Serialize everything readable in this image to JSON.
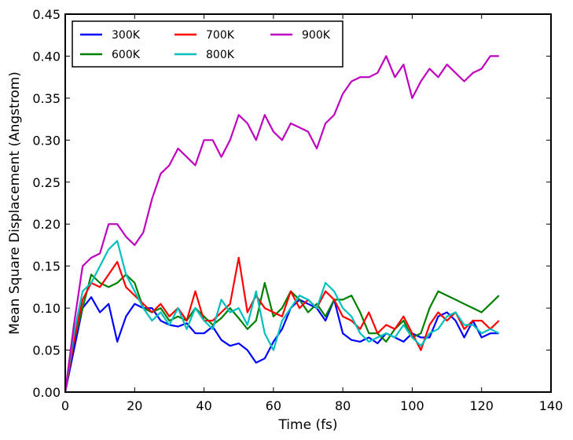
{
  "chart_data": {
    "type": "line",
    "title": "",
    "xlabel": "Time (fs)",
    "ylabel": "Mean Square Displacement (Angstrom)",
    "xlim": [
      0,
      140
    ],
    "ylim": [
      0.0,
      0.45
    ],
    "xticks": [
      "0",
      "20",
      "40",
      "60",
      "80",
      "100",
      "120",
      "140"
    ],
    "yticks": [
      "0.00",
      "0.05",
      "0.10",
      "0.15",
      "0.20",
      "0.25",
      "0.30",
      "0.35",
      "0.40",
      "0.45"
    ],
    "grid": false,
    "legend_position": "top-left",
    "x": [
      0,
      2.5,
      5,
      7.5,
      10,
      12.5,
      15,
      17.5,
      20,
      22.5,
      25,
      27.5,
      30,
      32.5,
      35,
      37.5,
      40,
      42.5,
      45,
      47.5,
      50,
      52.5,
      55,
      57.5,
      60,
      62.5,
      65,
      67.5,
      70,
      72.5,
      75,
      77.5,
      80,
      82.5,
      85,
      87.5,
      90,
      92.5,
      95,
      97.5,
      100,
      102.5,
      105,
      107.5,
      110,
      112.5,
      115,
      117.5,
      120,
      122.5,
      125
    ],
    "series": [
      {
        "name": "300K",
        "color": "#0000ff",
        "values": [
          0.0,
          0.05,
          0.1,
          0.113,
          0.095,
          0.105,
          0.06,
          0.09,
          0.105,
          0.1,
          0.1,
          0.085,
          0.08,
          0.078,
          0.082,
          0.07,
          0.07,
          0.078,
          0.062,
          0.055,
          0.058,
          0.05,
          0.035,
          0.04,
          0.06,
          0.075,
          0.1,
          0.11,
          0.105,
          0.1,
          0.085,
          0.11,
          0.07,
          0.062,
          0.06,
          0.065,
          0.058,
          0.07,
          0.065,
          0.06,
          0.07,
          0.065,
          0.065,
          0.09,
          0.095,
          0.085,
          0.065,
          0.085,
          0.065,
          0.07,
          0.07
        ]
      },
      {
        "name": "600K",
        "color": "#008000",
        "values": [
          0.0,
          0.06,
          0.1,
          0.14,
          0.13,
          0.125,
          0.13,
          0.14,
          0.13,
          0.1,
          0.095,
          0.1,
          0.085,
          0.09,
          0.085,
          0.1,
          0.09,
          0.08,
          0.088,
          0.1,
          0.088,
          0.075,
          0.085,
          0.13,
          0.09,
          0.1,
          0.12,
          0.11,
          0.095,
          0.105,
          0.09,
          0.11,
          0.11,
          0.115,
          0.095,
          0.07,
          0.07,
          0.06,
          0.075,
          0.085,
          0.065,
          0.07,
          0.1,
          0.12,
          0.115,
          0.11,
          0.105,
          0.1,
          0.095,
          0.105,
          0.115
        ]
      },
      {
        "name": "700K",
        "color": "#ff0000",
        "values": [
          0.0,
          0.06,
          0.11,
          0.13,
          0.125,
          0.14,
          0.155,
          0.125,
          0.115,
          0.105,
          0.095,
          0.105,
          0.09,
          0.1,
          0.085,
          0.12,
          0.085,
          0.085,
          0.095,
          0.105,
          0.16,
          0.095,
          0.115,
          0.1,
          0.095,
          0.09,
          0.12,
          0.1,
          0.11,
          0.1,
          0.12,
          0.11,
          0.09,
          0.085,
          0.075,
          0.095,
          0.07,
          0.08,
          0.075,
          0.09,
          0.07,
          0.05,
          0.08,
          0.095,
          0.085,
          0.095,
          0.075,
          0.085,
          0.085,
          0.075,
          0.085
        ]
      },
      {
        "name": "800K",
        "color": "#00bfbf",
        "values": [
          0.0,
          0.07,
          0.12,
          0.13,
          0.15,
          0.17,
          0.18,
          0.14,
          0.12,
          0.1,
          0.085,
          0.095,
          0.08,
          0.1,
          0.075,
          0.1,
          0.085,
          0.075,
          0.11,
          0.095,
          0.1,
          0.08,
          0.12,
          0.07,
          0.05,
          0.085,
          0.1,
          0.115,
          0.11,
          0.1,
          0.13,
          0.12,
          0.1,
          0.09,
          0.07,
          0.06,
          0.065,
          0.07,
          0.065,
          0.08,
          0.065,
          0.055,
          0.07,
          0.075,
          0.09,
          0.095,
          0.08,
          0.08,
          0.07,
          0.075,
          0.07
        ]
      },
      {
        "name": "900K",
        "color": "#bf00bf",
        "values": [
          0.0,
          0.08,
          0.15,
          0.16,
          0.165,
          0.2,
          0.2,
          0.185,
          0.175,
          0.19,
          0.23,
          0.26,
          0.27,
          0.29,
          0.28,
          0.27,
          0.3,
          0.3,
          0.28,
          0.3,
          0.33,
          0.32,
          0.3,
          0.33,
          0.31,
          0.3,
          0.32,
          0.315,
          0.31,
          0.29,
          0.32,
          0.33,
          0.355,
          0.37,
          0.375,
          0.375,
          0.38,
          0.4,
          0.375,
          0.39,
          0.35,
          0.37,
          0.385,
          0.375,
          0.39,
          0.38,
          0.37,
          0.38,
          0.385,
          0.4,
          0.4
        ]
      }
    ]
  }
}
